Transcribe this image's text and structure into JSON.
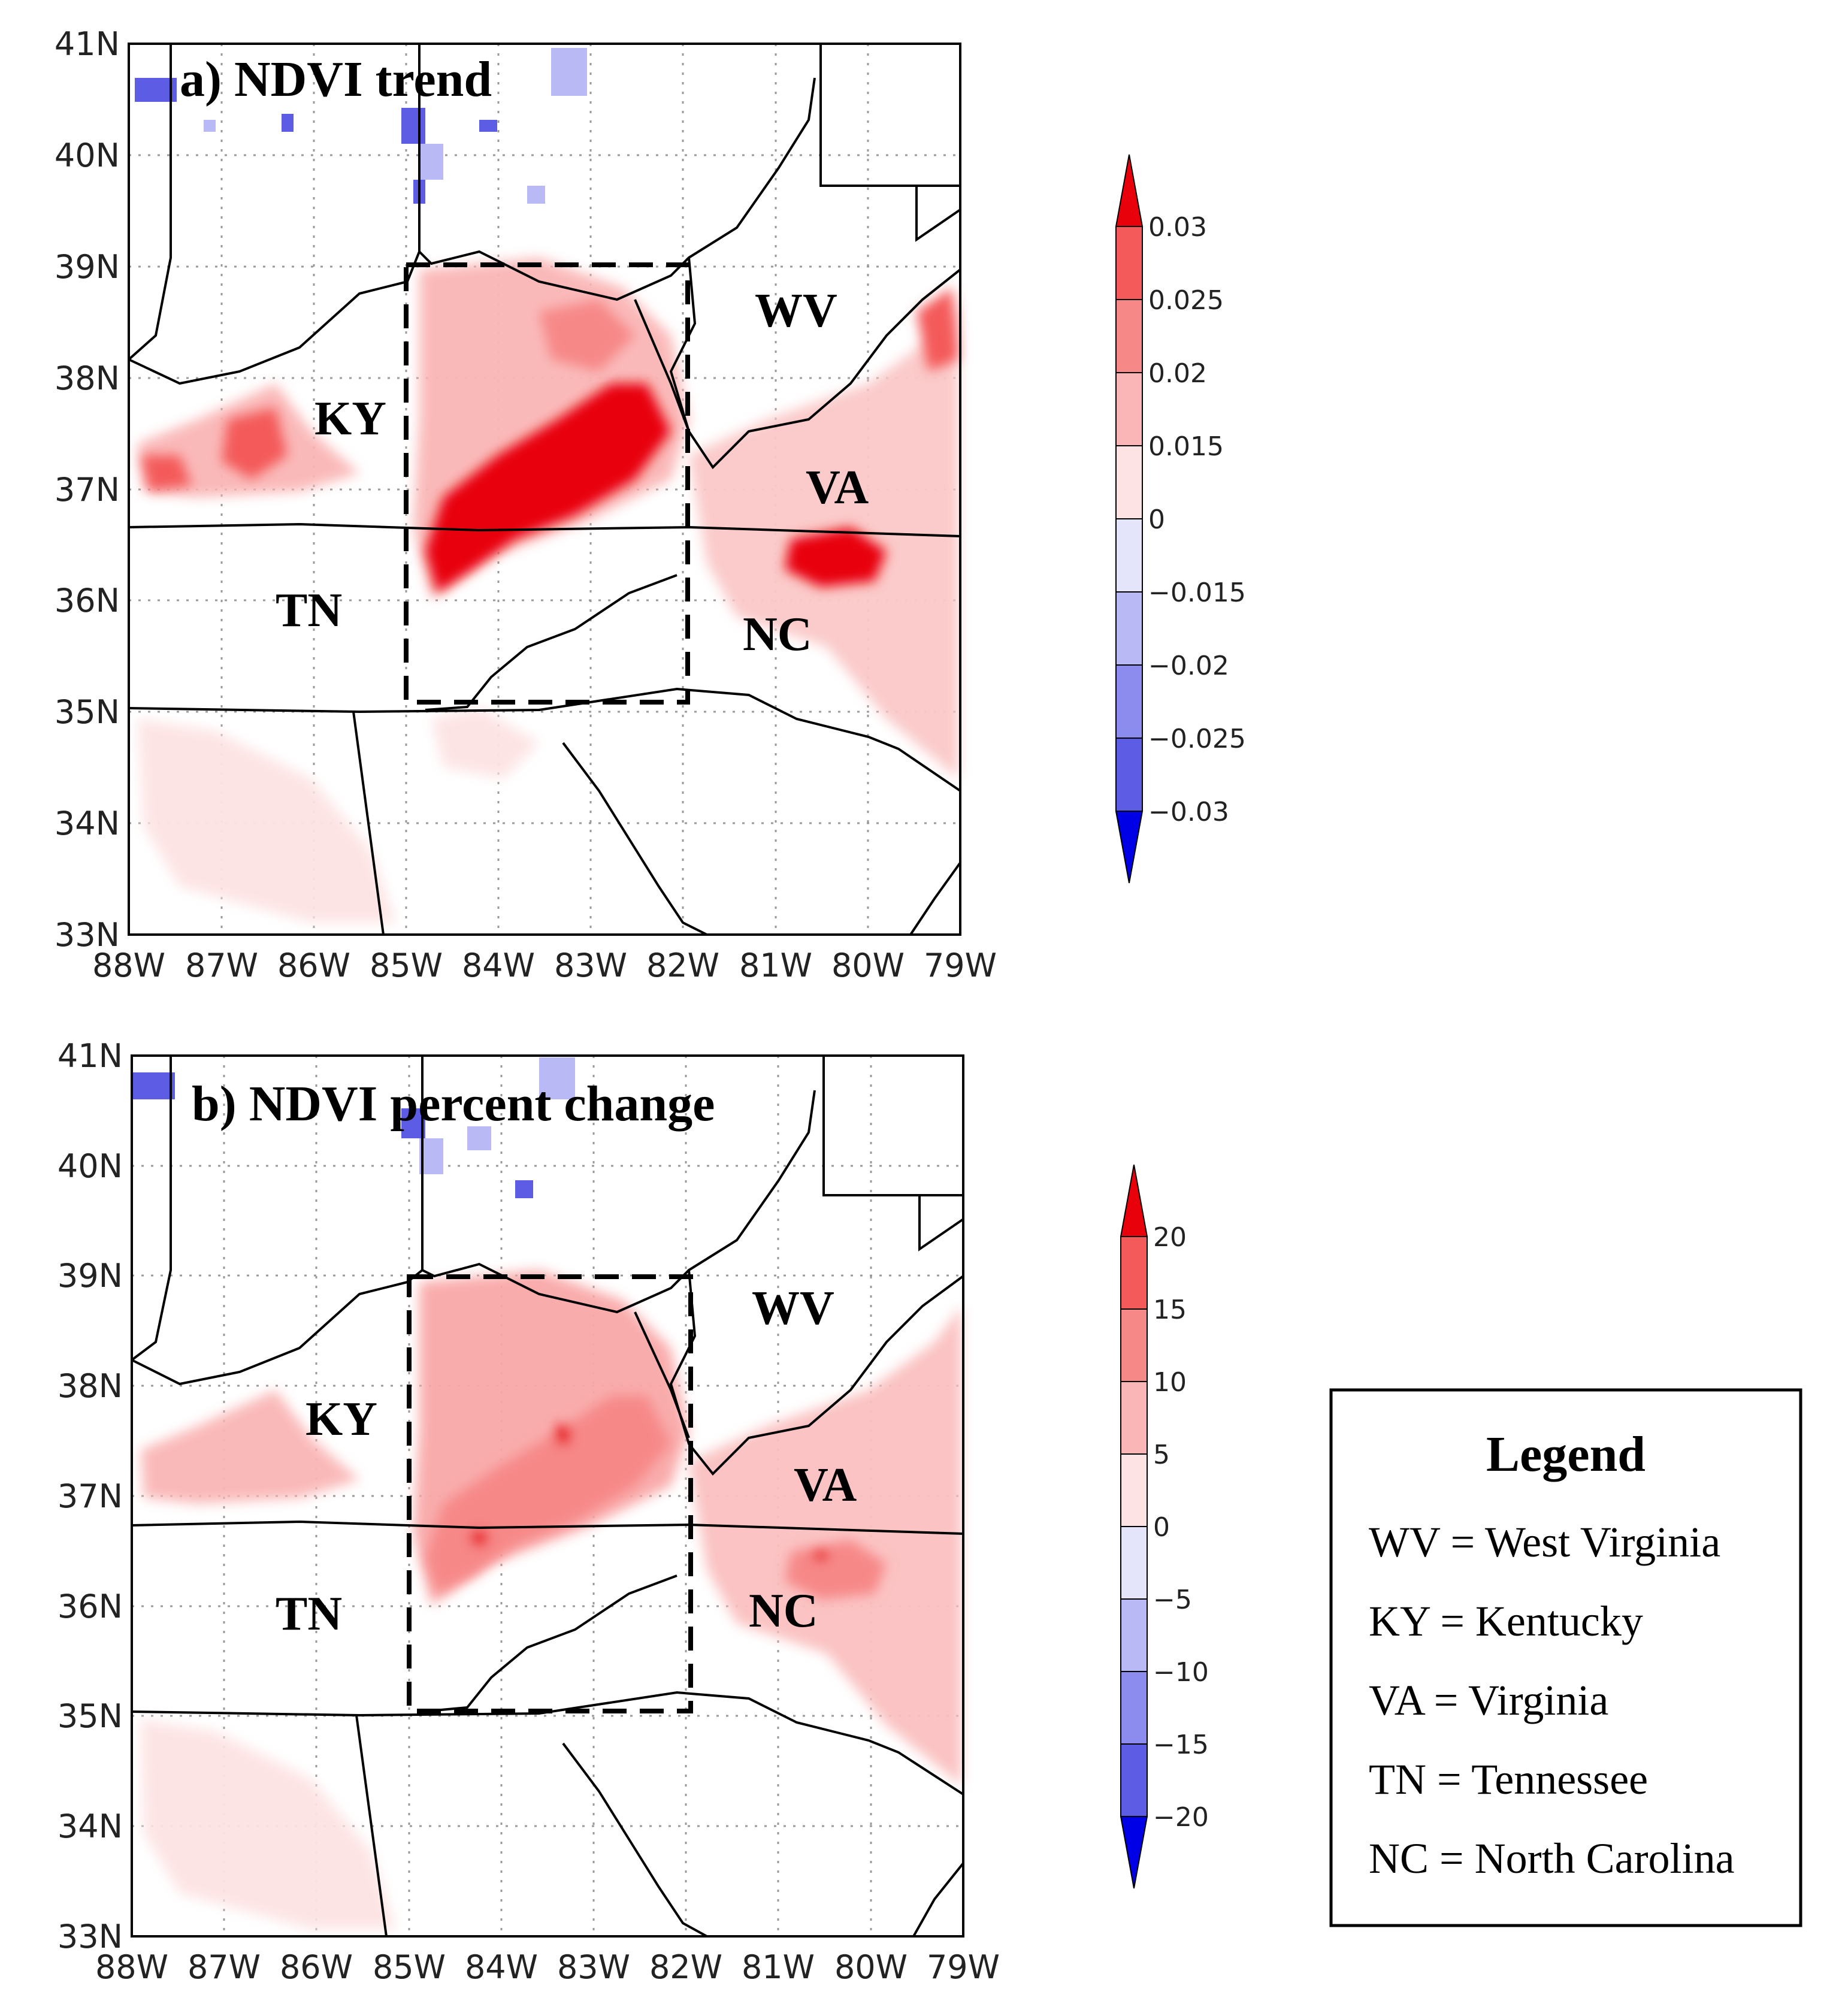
{
  "panels": [
    {
      "id": "a",
      "title": "a) NDVI trend",
      "x_ticks": [
        "88W",
        "87W",
        "86W",
        "85W",
        "84W",
        "83W",
        "82W",
        "81W",
        "80W",
        "79W"
      ],
      "y_ticks": [
        "41N",
        "40N",
        "39N",
        "38N",
        "37N",
        "36N",
        "35N",
        "34N",
        "33N"
      ],
      "state_labels": [
        "WV",
        "KY",
        "VA",
        "TN",
        "NC"
      ],
      "colorbar_ticks": [
        "0.03",
        "0.025",
        "0.02",
        "0.015",
        "0",
        "−0.015",
        "−0.02",
        "−0.025",
        "−0.03"
      ]
    },
    {
      "id": "b",
      "title": "b) NDVI percent change",
      "x_ticks": [
        "88W",
        "87W",
        "86W",
        "85W",
        "84W",
        "83W",
        "82W",
        "81W",
        "80W",
        "79W"
      ],
      "y_ticks": [
        "41N",
        "40N",
        "39N",
        "38N",
        "37N",
        "36N",
        "35N",
        "34N",
        "33N"
      ],
      "state_labels": [
        "WV",
        "KY",
        "VA",
        "TN",
        "NC"
      ],
      "colorbar_ticks": [
        "20",
        "15",
        "10",
        "5",
        "0",
        "−5",
        "−10",
        "−15",
        "−20"
      ]
    }
  ],
  "colorbar_colors": [
    "#e8000b",
    "#f45a5a",
    "#f78888",
    "#fab6b6",
    "#fde3e3",
    "#e4e4fb",
    "#b9b9f6",
    "#8c8cee",
    "#5c5ce4",
    "#0000e6"
  ],
  "legend": {
    "title": "Legend",
    "items": [
      "WV = West Virginia",
      "KY = Kentucky",
      "VA = Virginia",
      "TN = Tennessee",
      "NC = North Carolina"
    ]
  }
}
